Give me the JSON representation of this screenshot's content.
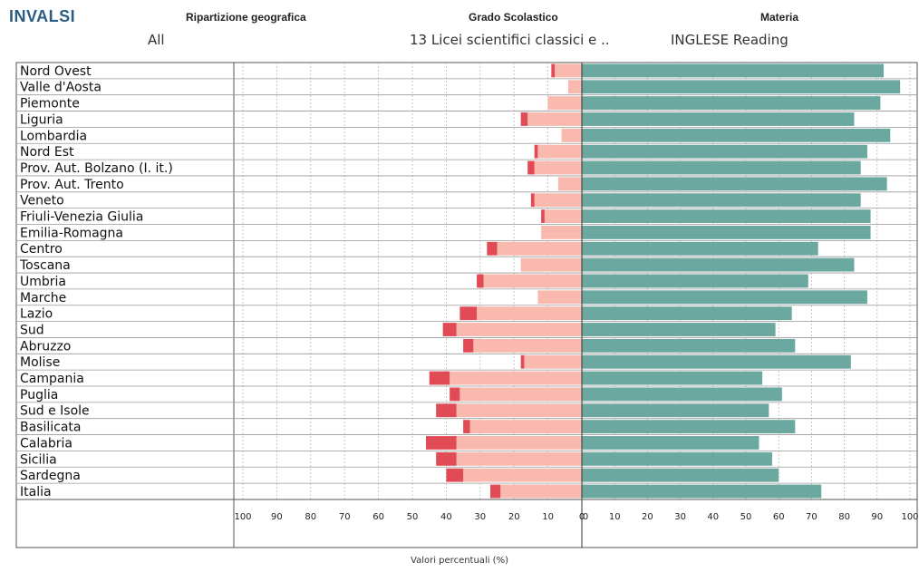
{
  "header": {
    "logo_text": "INVALSI",
    "filters": [
      {
        "label": "Ripartizione geografica",
        "value": "All"
      },
      {
        "label": "Grado Scolastico",
        "value": "13 Licei scientifici classici e .."
      },
      {
        "label": "Materia",
        "value": "INGLESE Reading"
      }
    ]
  },
  "colors": {
    "left_light": "#f9b9ae",
    "left_dark": "#e04b56",
    "right_bar": "#6aa8a0",
    "grid": "#bbbbbb"
  },
  "chart_data": {
    "type": "bar",
    "orientation": "horizontal-diverging",
    "xlabel": "Valori percentuali (%)",
    "left_ticks": [
      "100",
      "90",
      "80",
      "70",
      "60",
      "50",
      "40",
      "30",
      "20",
      "10",
      "0"
    ],
    "right_ticks": [
      "0",
      "10",
      "20",
      "30",
      "40",
      "50",
      "60",
      "70",
      "80",
      "90",
      "100"
    ],
    "xlim_left": [
      100,
      0
    ],
    "xlim_right": [
      0,
      100
    ],
    "categories": [
      "Nord Ovest",
      "Valle d'Aosta",
      "Piemonte",
      "Liguria",
      "Lombardia",
      "Nord Est",
      "Prov. Aut. Bolzano (I. it.)",
      "Prov. Aut. Trento",
      "Veneto",
      "Friuli-Venezia Giulia",
      "Emilia-Romagna",
      "Centro",
      "Toscana",
      "Umbria",
      "Marche",
      "Lazio",
      "Sud",
      "Abruzzo",
      "Molise",
      "Campania",
      "Puglia",
      "Sud e Isole",
      "Basilicata",
      "Calabria",
      "Sicilia",
      "Sardegna",
      "Italia"
    ],
    "series": [
      {
        "values": [
          8,
          4,
          10,
          16,
          6,
          13,
          14,
          7,
          14,
          11,
          12,
          25,
          18,
          29,
          13,
          31,
          37,
          32,
          17,
          39,
          36,
          37,
          33,
          37,
          37,
          35,
          24
        ]
      },
      {
        "values": [
          1,
          0,
          0,
          2,
          0,
          1,
          2,
          0,
          1,
          1,
          0,
          3,
          0,
          2,
          0,
          5,
          4,
          3,
          1,
          6,
          3,
          6,
          2,
          9,
          6,
          5,
          3
        ]
      },
      {
        "values": [
          92,
          97,
          91,
          83,
          94,
          87,
          85,
          93,
          85,
          88,
          88,
          72,
          83,
          69,
          87,
          64,
          59,
          65,
          82,
          55,
          61,
          57,
          65,
          54,
          58,
          60,
          73
        ]
      }
    ]
  }
}
